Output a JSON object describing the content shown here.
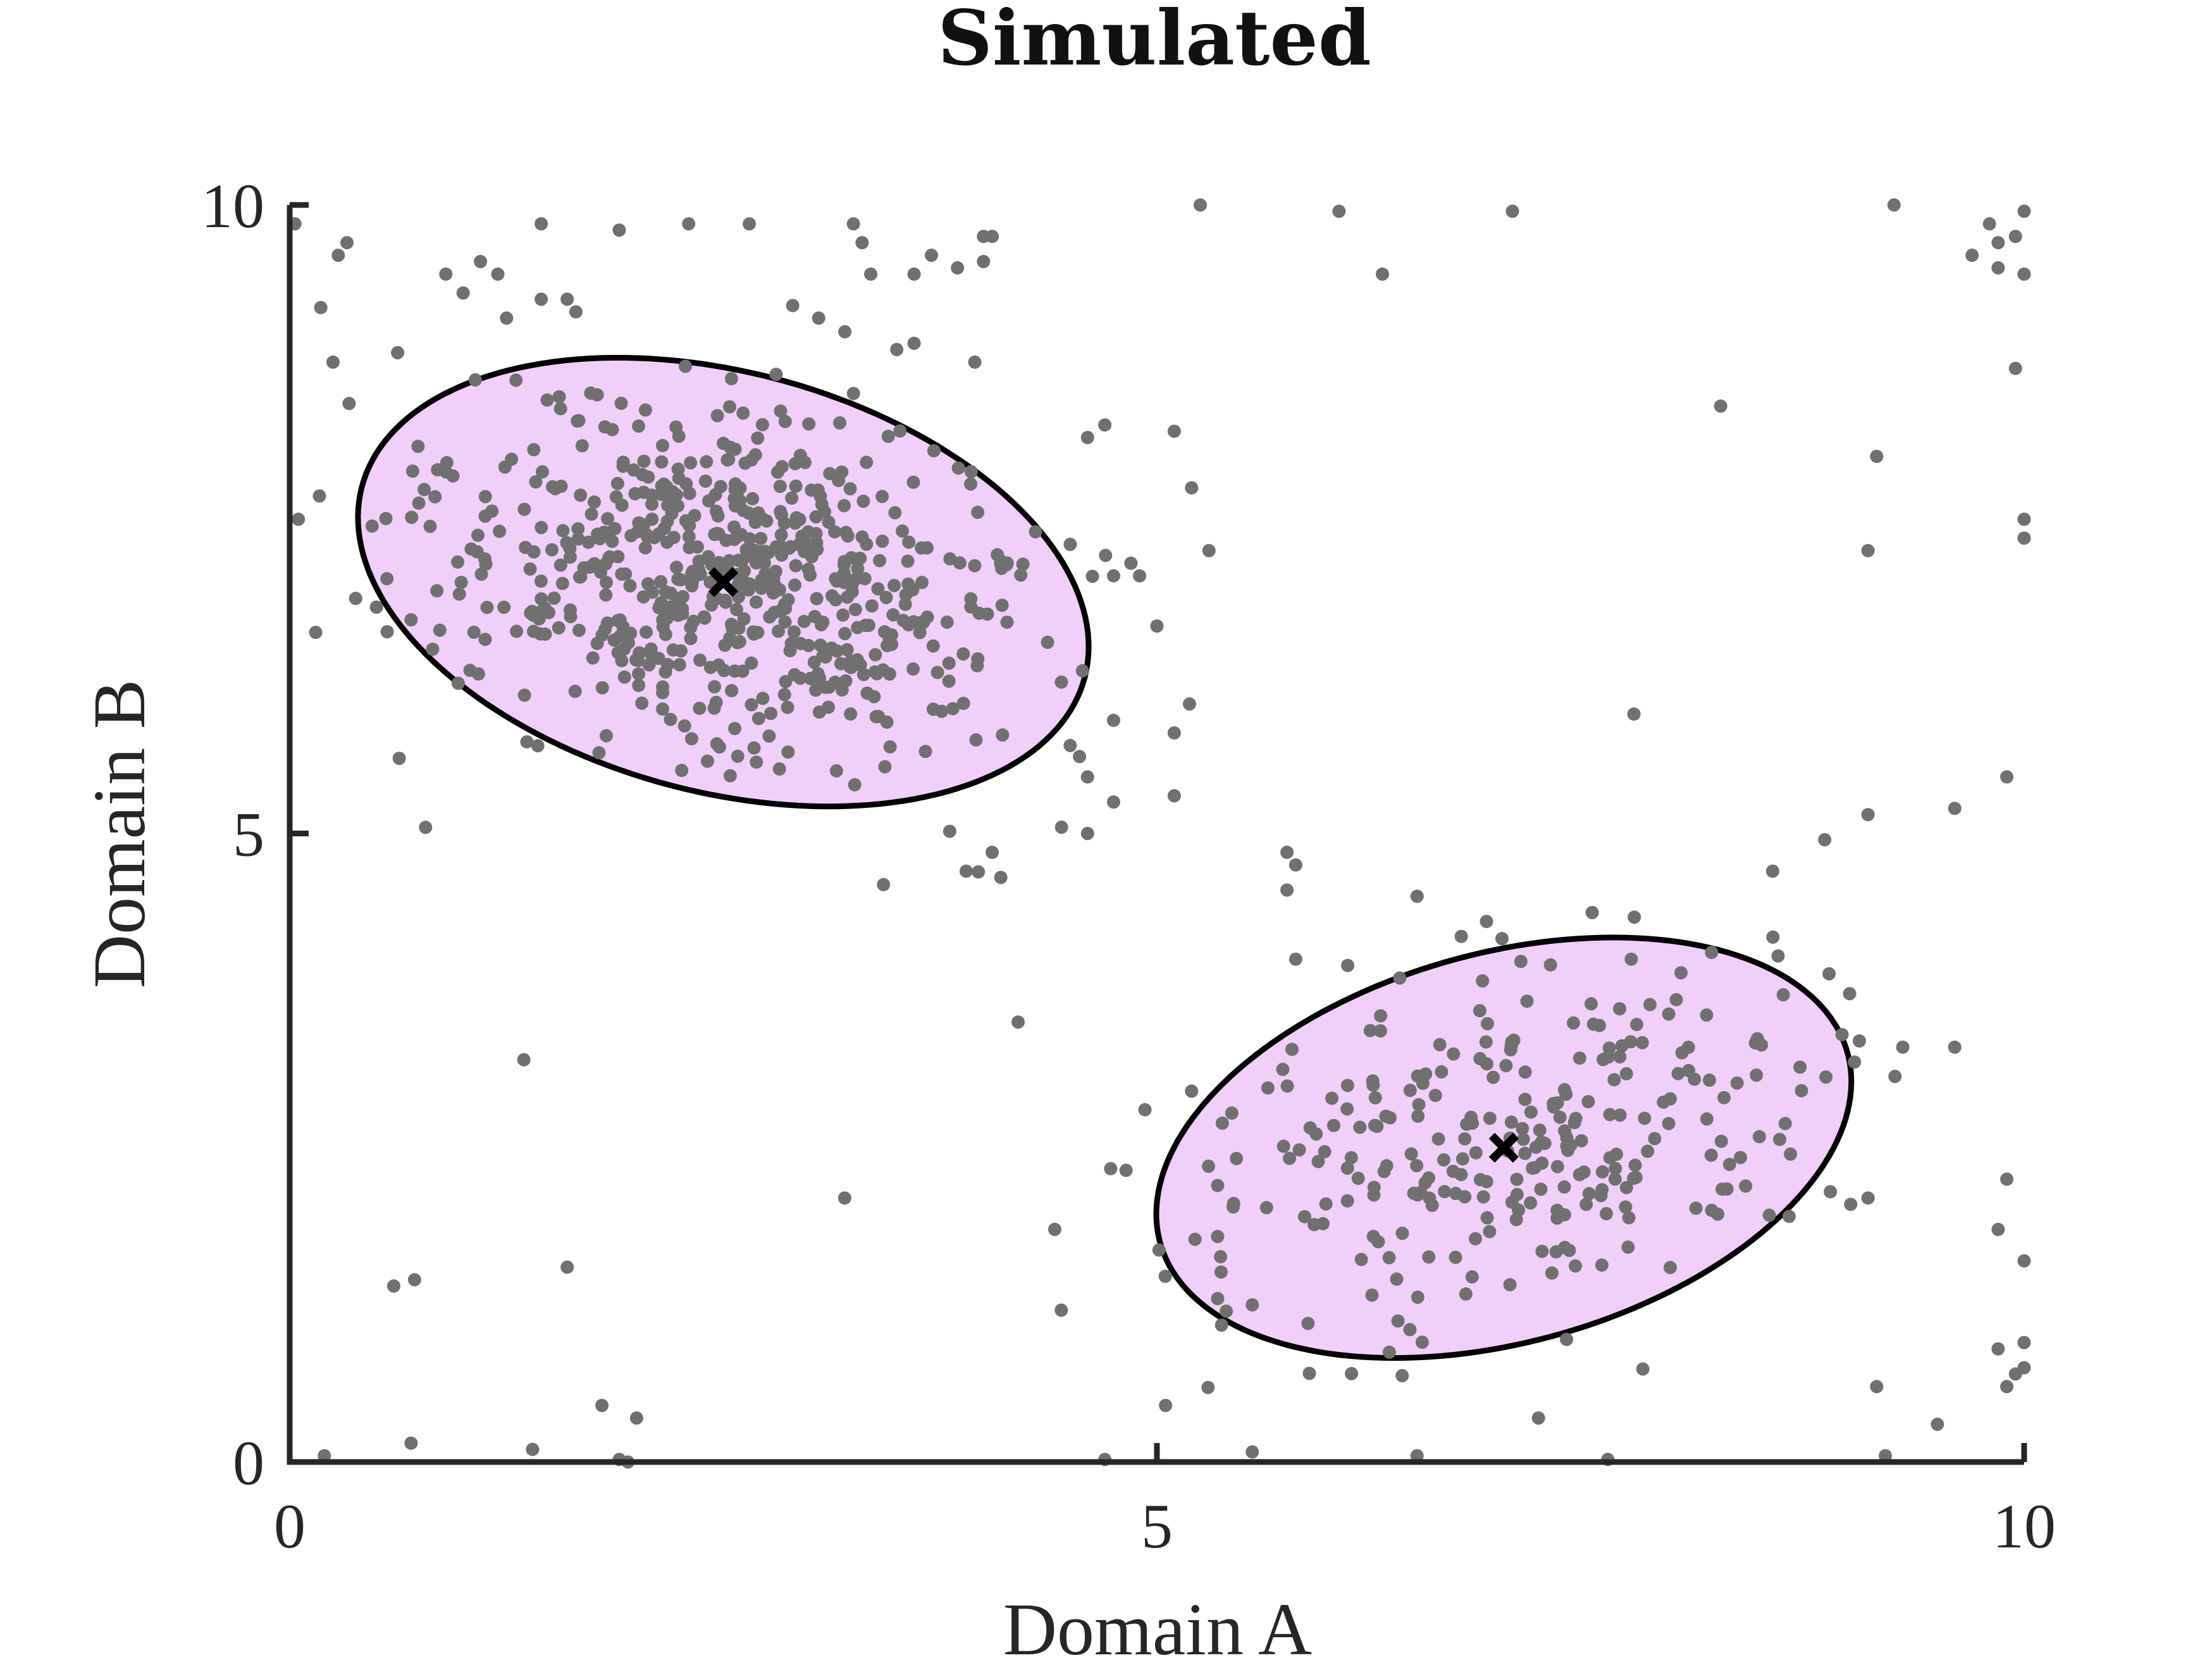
{
  "chart_data": {
    "type": "scatter",
    "title": "Simulated",
    "xlabel": "Domain A",
    "ylabel": "Domain B",
    "xlim": [
      0,
      10
    ],
    "ylim": [
      0,
      10
    ],
    "xticks": [
      0,
      5,
      10
    ],
    "yticks": [
      0,
      5,
      10
    ],
    "grid": false,
    "colors": {
      "points": "#707070",
      "region_fill": "#f0d0fb",
      "region_edge": "#000000",
      "axis": "#262626"
    },
    "clusters": [
      {
        "center": [
          2.5,
          7.0
        ],
        "semi_axes": [
          2.25,
          1.6
        ],
        "angle_deg": -30,
        "n_points": 620,
        "spread": 0.33
      },
      {
        "center": [
          7.0,
          2.5
        ],
        "semi_axes": [
          2.15,
          1.48
        ],
        "angle_deg": 30,
        "n_points": 280,
        "spread": 0.38
      }
    ],
    "centroids": [
      {
        "x": 2.5,
        "y": 7.0,
        "marker": "x"
      },
      {
        "x": 7.0,
        "y": 2.5,
        "marker": "x"
      }
    ],
    "background_points": [
      [
        0.03,
        9.85
      ],
      [
        0.28,
        9.6
      ],
      [
        0.33,
        9.7
      ],
      [
        0.25,
        8.75
      ],
      [
        0.05,
        7.5
      ],
      [
        0.15,
        6.6
      ],
      [
        0.5,
        6.8
      ],
      [
        0.7,
        6.7
      ],
      [
        0.9,
        9.45
      ],
      [
        1.0,
        9.3
      ],
      [
        1.1,
        9.55
      ],
      [
        1.2,
        9.45
      ],
      [
        1.25,
        9.1
      ],
      [
        1.45,
        9.25
      ],
      [
        1.6,
        9.25
      ],
      [
        1.65,
        9.15
      ],
      [
        1.45,
        9.85
      ],
      [
        1.9,
        9.8
      ],
      [
        2.3,
        9.85
      ],
      [
        2.65,
        9.85
      ],
      [
        3.25,
        9.85
      ],
      [
        3.3,
        9.7
      ],
      [
        3.6,
        9.45
      ],
      [
        3.35,
        9.45
      ],
      [
        3.7,
        9.6
      ],
      [
        2.9,
        9.2
      ],
      [
        3.05,
        9.1
      ],
      [
        3.6,
        8.9
      ],
      [
        3.5,
        8.85
      ],
      [
        3.85,
        9.5
      ],
      [
        4.0,
        9.75
      ],
      [
        4.0,
        9.55
      ],
      [
        4.05,
        9.75
      ],
      [
        3.95,
        8.75
      ],
      [
        3.25,
        8.5
      ],
      [
        4.3,
        7.4
      ],
      [
        4.5,
        7.3
      ],
      [
        4.75,
        7.05
      ],
      [
        4.85,
        7.15
      ],
      [
        4.9,
        7.05
      ],
      [
        5.0,
        6.65
      ],
      [
        4.6,
        8.15
      ],
      [
        4.7,
        8.25
      ],
      [
        5.1,
        8.2
      ],
      [
        5.2,
        7.75
      ],
      [
        5.3,
        7.25
      ],
      [
        4.75,
        5.9
      ],
      [
        5.1,
        5.8
      ],
      [
        4.5,
        5.7
      ],
      [
        4.6,
        5.45
      ],
      [
        4.75,
        5.25
      ],
      [
        4.6,
        5.0
      ],
      [
        4.45,
        5.05
      ],
      [
        4.05,
        4.85
      ],
      [
        3.9,
        4.7
      ],
      [
        4.1,
        4.65
      ],
      [
        4.2,
        3.5
      ],
      [
        5.1,
        5.3
      ],
      [
        5.25,
        10.0
      ],
      [
        6.05,
        9.95
      ],
      [
        6.3,
        9.45
      ],
      [
        7.05,
        9.95
      ],
      [
        8.25,
        8.4
      ],
      [
        9.25,
        10.0
      ],
      [
        9.15,
        8.0
      ],
      [
        9.1,
        7.25
      ],
      [
        9.8,
        9.85
      ],
      [
        9.7,
        9.6
      ],
      [
        9.85,
        9.7
      ],
      [
        9.95,
        9.75
      ],
      [
        10.0,
        9.95
      ],
      [
        9.85,
        9.5
      ],
      [
        10.0,
        9.45
      ],
      [
        9.95,
        8.7
      ],
      [
        10.0,
        7.5
      ],
      [
        10.0,
        7.35
      ],
      [
        7.75,
        5.95
      ],
      [
        9.9,
        5.45
      ],
      [
        9.6,
        5.2
      ],
      [
        9.1,
        5.15
      ],
      [
        8.85,
        4.95
      ],
      [
        8.55,
        4.7
      ],
      [
        5.75,
        4.85
      ],
      [
        5.8,
        4.75
      ],
      [
        5.75,
        4.55
      ],
      [
        5.8,
        4.0
      ],
      [
        6.1,
        3.95
      ],
      [
        6.4,
        3.85
      ],
      [
        6.5,
        4.5
      ],
      [
        6.9,
        4.3
      ],
      [
        1.35,
        3.2
      ],
      [
        3.2,
        2.1
      ],
      [
        1.6,
        1.55
      ],
      [
        0.6,
        1.4
      ],
      [
        0.72,
        1.45
      ],
      [
        0.7,
        0.15
      ],
      [
        0.2,
        0.05
      ],
      [
        1.4,
        0.1
      ],
      [
        1.8,
        0.45
      ],
      [
        2.0,
        0.35
      ],
      [
        1.9,
        0.02
      ],
      [
        1.95,
        0.0
      ],
      [
        4.7,
        0.02
      ],
      [
        5.05,
        0.45
      ],
      [
        5.55,
        0.08
      ],
      [
        6.5,
        0.05
      ],
      [
        7.2,
        0.35
      ],
      [
        7.6,
        0.02
      ],
      [
        9.2,
        0.05
      ],
      [
        9.5,
        0.3
      ],
      [
        9.15,
        0.6
      ],
      [
        9.9,
        0.6
      ],
      [
        9.95,
        0.7
      ],
      [
        10.0,
        0.75
      ],
      [
        9.85,
        0.9
      ],
      [
        10.0,
        0.95
      ],
      [
        10.0,
        1.6
      ],
      [
        9.85,
        1.85
      ],
      [
        9.9,
        2.25
      ],
      [
        9.1,
        2.1
      ],
      [
        9.05,
        3.35
      ],
      [
        9.3,
        3.3
      ],
      [
        9.6,
        3.3
      ],
      [
        8.95,
        3.4
      ],
      [
        5.2,
        2.95
      ],
      [
        5.35,
        2.2
      ],
      [
        5.55,
        1.25
      ],
      [
        5.35,
        1.3
      ],
      [
        5.4,
        1.2
      ],
      [
        9.0,
        2.05
      ]
    ]
  }
}
